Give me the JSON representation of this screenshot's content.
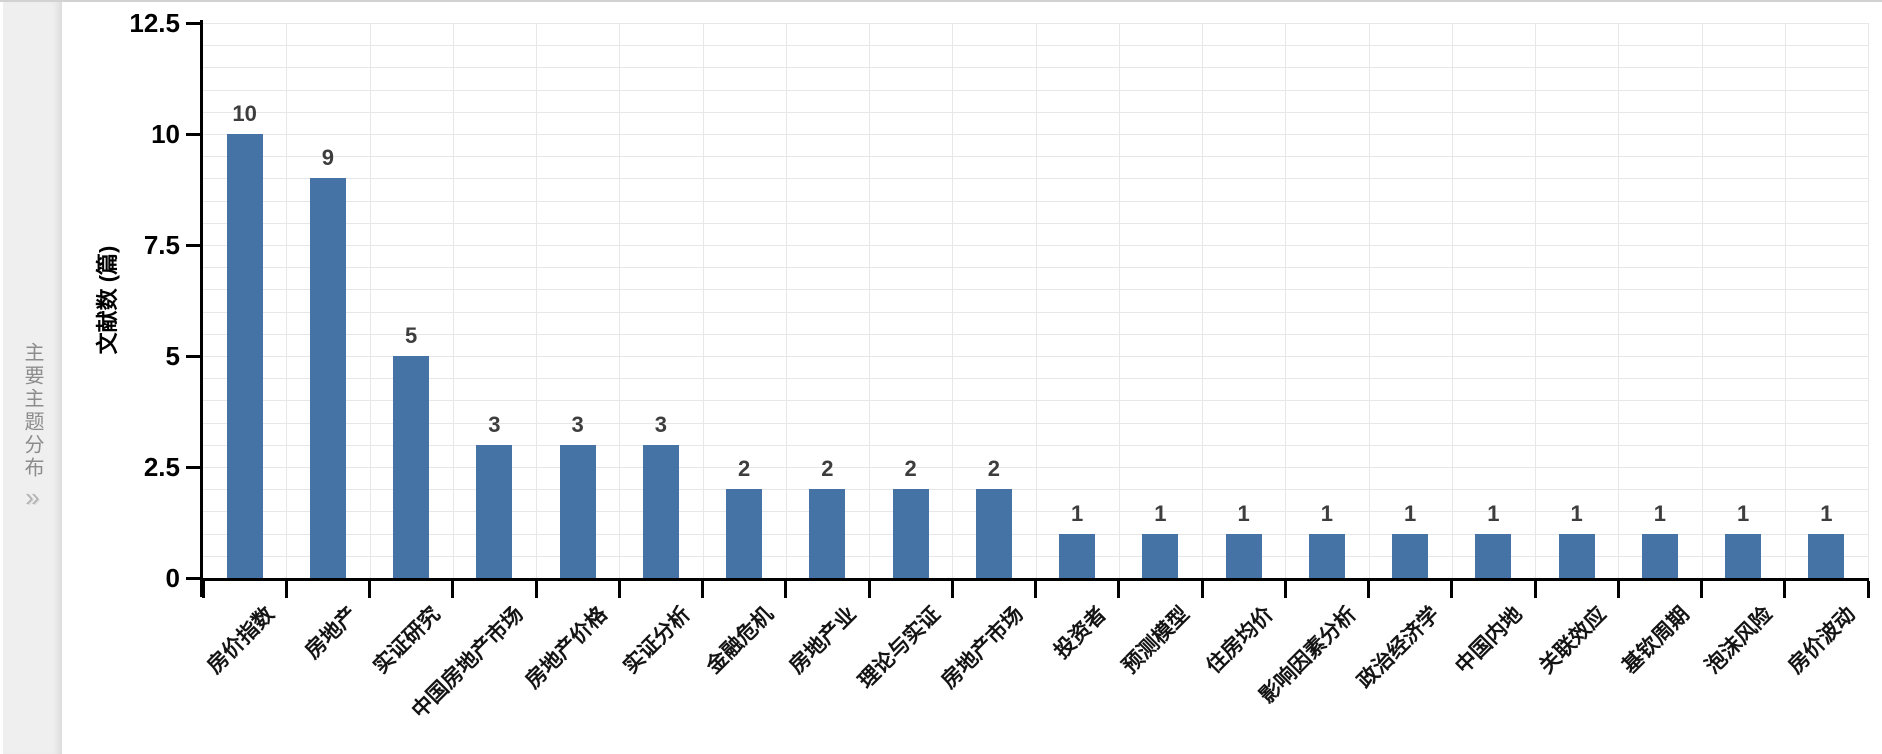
{
  "sidebar": {
    "title": "主要主题分布",
    "collapse_handle": "»"
  },
  "chart_data": {
    "type": "bar",
    "title": "",
    "categories": [
      "房价指数",
      "房地产",
      "实证研究",
      "中国房地产市场",
      "房地产价格",
      "实证分析",
      "金融危机",
      "房地产业",
      "理论与实证",
      "房地产市场",
      "投资者",
      "预测模型",
      "住房均价",
      "影响因素分析",
      "政治经济学",
      "中国内地",
      "关联效应",
      "基钦周期",
      "泡沫风险",
      "房价波动"
    ],
    "values": [
      10,
      9,
      5,
      3,
      3,
      3,
      2,
      2,
      2,
      2,
      1,
      1,
      1,
      1,
      1,
      1,
      1,
      1,
      1,
      1
    ],
    "xlabel": "",
    "ylabel": "文献数 (篇)",
    "yticks": [
      0,
      2.5,
      5,
      7.5,
      10,
      12.5
    ],
    "ylim": [
      0,
      12.5
    ],
    "grid": "on",
    "minor_grid_step": 0.5,
    "legend": "none",
    "bar_color": "#4573a6",
    "grid_color": "#e7e7e7",
    "value_label_color": "#3d3d3d"
  }
}
